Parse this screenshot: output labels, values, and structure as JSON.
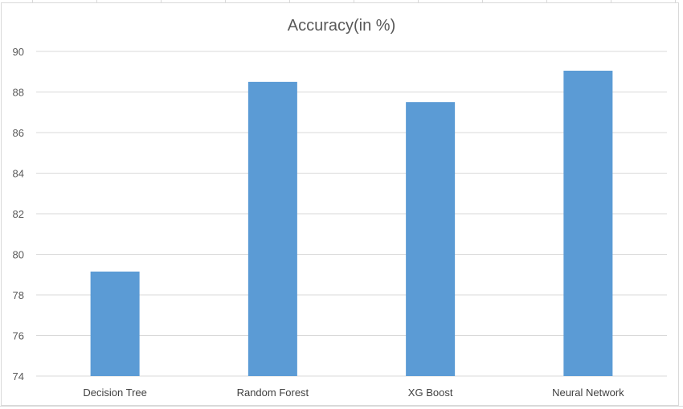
{
  "chart_data": {
    "type": "bar",
    "title": "Accuracy(in %)",
    "xlabel": "",
    "ylabel": "",
    "categories": [
      "Decision Tree",
      "Random Forest",
      "XG Boost",
      "Neural Network"
    ],
    "values": [
      79.15,
      88.5,
      87.5,
      89.05
    ],
    "ylim": [
      74,
      90
    ],
    "yticks": [
      74,
      76,
      78,
      80,
      82,
      84,
      86,
      88,
      90
    ],
    "grid": true,
    "legend": "none",
    "bar_color": "#5b9bd5",
    "grid_color": "#d9d9d9",
    "text_color": "#595959"
  }
}
